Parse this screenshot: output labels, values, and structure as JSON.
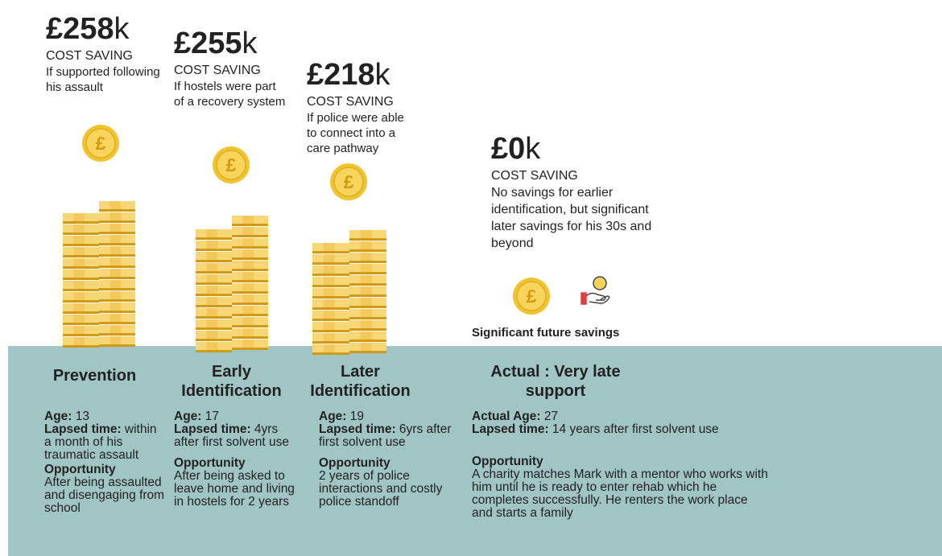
{
  "columns": [
    {
      "amount": "£258",
      "unit": "k",
      "label": "COST SAVING",
      "note": "If supported following his assault",
      "stage": "Prevention",
      "age_label": "Age:",
      "age": "13",
      "lapsed_label": "Lapsed time:",
      "lapsed": "within a month of his traumatic assault",
      "opp_label": "Opportunity",
      "opp": "After being assaulted and disengaging from school"
    },
    {
      "amount": "£255",
      "unit": "k",
      "label": "COST SAVING",
      "note": "If hostels were part of a recovery system",
      "stage": "Early Identification",
      "age_label": "Age:",
      "age": "17",
      "lapsed_label": "Lapsed time:",
      "lapsed": "4yrs after first solvent use",
      "opp_label": "Opportunity",
      "opp": "After being asked to leave home and living in hostels for 2 years"
    },
    {
      "amount": "£218",
      "unit": "k",
      "label": "COST SAVING",
      "note": "If police were able to connect into a care pathway",
      "stage": "Later Identification",
      "age_label": "Age:",
      "age": "19",
      "lapsed_label": "Lapsed time:",
      "lapsed": "6yrs after first solvent use",
      "opp_label": "Opportunity",
      "opp": "2 years of police interactions and costly police standoff"
    },
    {
      "amount": "£0",
      "unit": "k",
      "label": "COST SAVING",
      "note": "No savings for earlier identification, but significant later savings for his 30s and beyond",
      "stage": "Actual : Very late support",
      "age_label": "Actual Age:",
      "age": "27",
      "lapsed_label": "Lapsed time:",
      "lapsed": "14 years after first solvent use",
      "opp_label": "Opportunity",
      "opp": "A charity matches Mark with a mentor who works with him until he is ready to enter rehab which he completes successfully. He renters the work place and starts a family"
    }
  ],
  "future_note": "Significant future savings"
}
